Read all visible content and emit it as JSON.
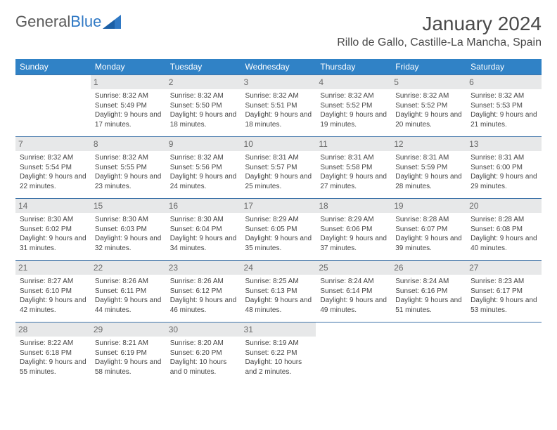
{
  "brand": {
    "part1": "General",
    "part2": "Blue",
    "brand_color": "#2f78c4",
    "text_color": "#5a5a5a"
  },
  "title": "January 2024",
  "subtitle": "Rillo de Gallo, Castille-La Mancha, Spain",
  "colors": {
    "header_bg": "#3082c6",
    "header_text": "#ffffff",
    "daynum_bg": "#e7e8e9",
    "daynum_text": "#6a6a6a",
    "cell_border": "#3e73a8",
    "body_text": "#444444"
  },
  "weekdays": [
    "Sunday",
    "Monday",
    "Tuesday",
    "Wednesday",
    "Thursday",
    "Friday",
    "Saturday"
  ],
  "weeks": [
    [
      {
        "n": "",
        "t": ""
      },
      {
        "n": "1",
        "t": "Sunrise: 8:32 AM\nSunset: 5:49 PM\nDaylight: 9 hours and 17 minutes."
      },
      {
        "n": "2",
        "t": "Sunrise: 8:32 AM\nSunset: 5:50 PM\nDaylight: 9 hours and 18 minutes."
      },
      {
        "n": "3",
        "t": "Sunrise: 8:32 AM\nSunset: 5:51 PM\nDaylight: 9 hours and 18 minutes."
      },
      {
        "n": "4",
        "t": "Sunrise: 8:32 AM\nSunset: 5:52 PM\nDaylight: 9 hours and 19 minutes."
      },
      {
        "n": "5",
        "t": "Sunrise: 8:32 AM\nSunset: 5:52 PM\nDaylight: 9 hours and 20 minutes."
      },
      {
        "n": "6",
        "t": "Sunrise: 8:32 AM\nSunset: 5:53 PM\nDaylight: 9 hours and 21 minutes."
      }
    ],
    [
      {
        "n": "7",
        "t": "Sunrise: 8:32 AM\nSunset: 5:54 PM\nDaylight: 9 hours and 22 minutes."
      },
      {
        "n": "8",
        "t": "Sunrise: 8:32 AM\nSunset: 5:55 PM\nDaylight: 9 hours and 23 minutes."
      },
      {
        "n": "9",
        "t": "Sunrise: 8:32 AM\nSunset: 5:56 PM\nDaylight: 9 hours and 24 minutes."
      },
      {
        "n": "10",
        "t": "Sunrise: 8:31 AM\nSunset: 5:57 PM\nDaylight: 9 hours and 25 minutes."
      },
      {
        "n": "11",
        "t": "Sunrise: 8:31 AM\nSunset: 5:58 PM\nDaylight: 9 hours and 27 minutes."
      },
      {
        "n": "12",
        "t": "Sunrise: 8:31 AM\nSunset: 5:59 PM\nDaylight: 9 hours and 28 minutes."
      },
      {
        "n": "13",
        "t": "Sunrise: 8:31 AM\nSunset: 6:00 PM\nDaylight: 9 hours and 29 minutes."
      }
    ],
    [
      {
        "n": "14",
        "t": "Sunrise: 8:30 AM\nSunset: 6:02 PM\nDaylight: 9 hours and 31 minutes."
      },
      {
        "n": "15",
        "t": "Sunrise: 8:30 AM\nSunset: 6:03 PM\nDaylight: 9 hours and 32 minutes."
      },
      {
        "n": "16",
        "t": "Sunrise: 8:30 AM\nSunset: 6:04 PM\nDaylight: 9 hours and 34 minutes."
      },
      {
        "n": "17",
        "t": "Sunrise: 8:29 AM\nSunset: 6:05 PM\nDaylight: 9 hours and 35 minutes."
      },
      {
        "n": "18",
        "t": "Sunrise: 8:29 AM\nSunset: 6:06 PM\nDaylight: 9 hours and 37 minutes."
      },
      {
        "n": "19",
        "t": "Sunrise: 8:28 AM\nSunset: 6:07 PM\nDaylight: 9 hours and 39 minutes."
      },
      {
        "n": "20",
        "t": "Sunrise: 8:28 AM\nSunset: 6:08 PM\nDaylight: 9 hours and 40 minutes."
      }
    ],
    [
      {
        "n": "21",
        "t": "Sunrise: 8:27 AM\nSunset: 6:10 PM\nDaylight: 9 hours and 42 minutes."
      },
      {
        "n": "22",
        "t": "Sunrise: 8:26 AM\nSunset: 6:11 PM\nDaylight: 9 hours and 44 minutes."
      },
      {
        "n": "23",
        "t": "Sunrise: 8:26 AM\nSunset: 6:12 PM\nDaylight: 9 hours and 46 minutes."
      },
      {
        "n": "24",
        "t": "Sunrise: 8:25 AM\nSunset: 6:13 PM\nDaylight: 9 hours and 48 minutes."
      },
      {
        "n": "25",
        "t": "Sunrise: 8:24 AM\nSunset: 6:14 PM\nDaylight: 9 hours and 49 minutes."
      },
      {
        "n": "26",
        "t": "Sunrise: 8:24 AM\nSunset: 6:16 PM\nDaylight: 9 hours and 51 minutes."
      },
      {
        "n": "27",
        "t": "Sunrise: 8:23 AM\nSunset: 6:17 PM\nDaylight: 9 hours and 53 minutes."
      }
    ],
    [
      {
        "n": "28",
        "t": "Sunrise: 8:22 AM\nSunset: 6:18 PM\nDaylight: 9 hours and 55 minutes."
      },
      {
        "n": "29",
        "t": "Sunrise: 8:21 AM\nSunset: 6:19 PM\nDaylight: 9 hours and 58 minutes."
      },
      {
        "n": "30",
        "t": "Sunrise: 8:20 AM\nSunset: 6:20 PM\nDaylight: 10 hours and 0 minutes."
      },
      {
        "n": "31",
        "t": "Sunrise: 8:19 AM\nSunset: 6:22 PM\nDaylight: 10 hours and 2 minutes."
      },
      {
        "n": "",
        "t": ""
      },
      {
        "n": "",
        "t": ""
      },
      {
        "n": "",
        "t": ""
      }
    ]
  ]
}
